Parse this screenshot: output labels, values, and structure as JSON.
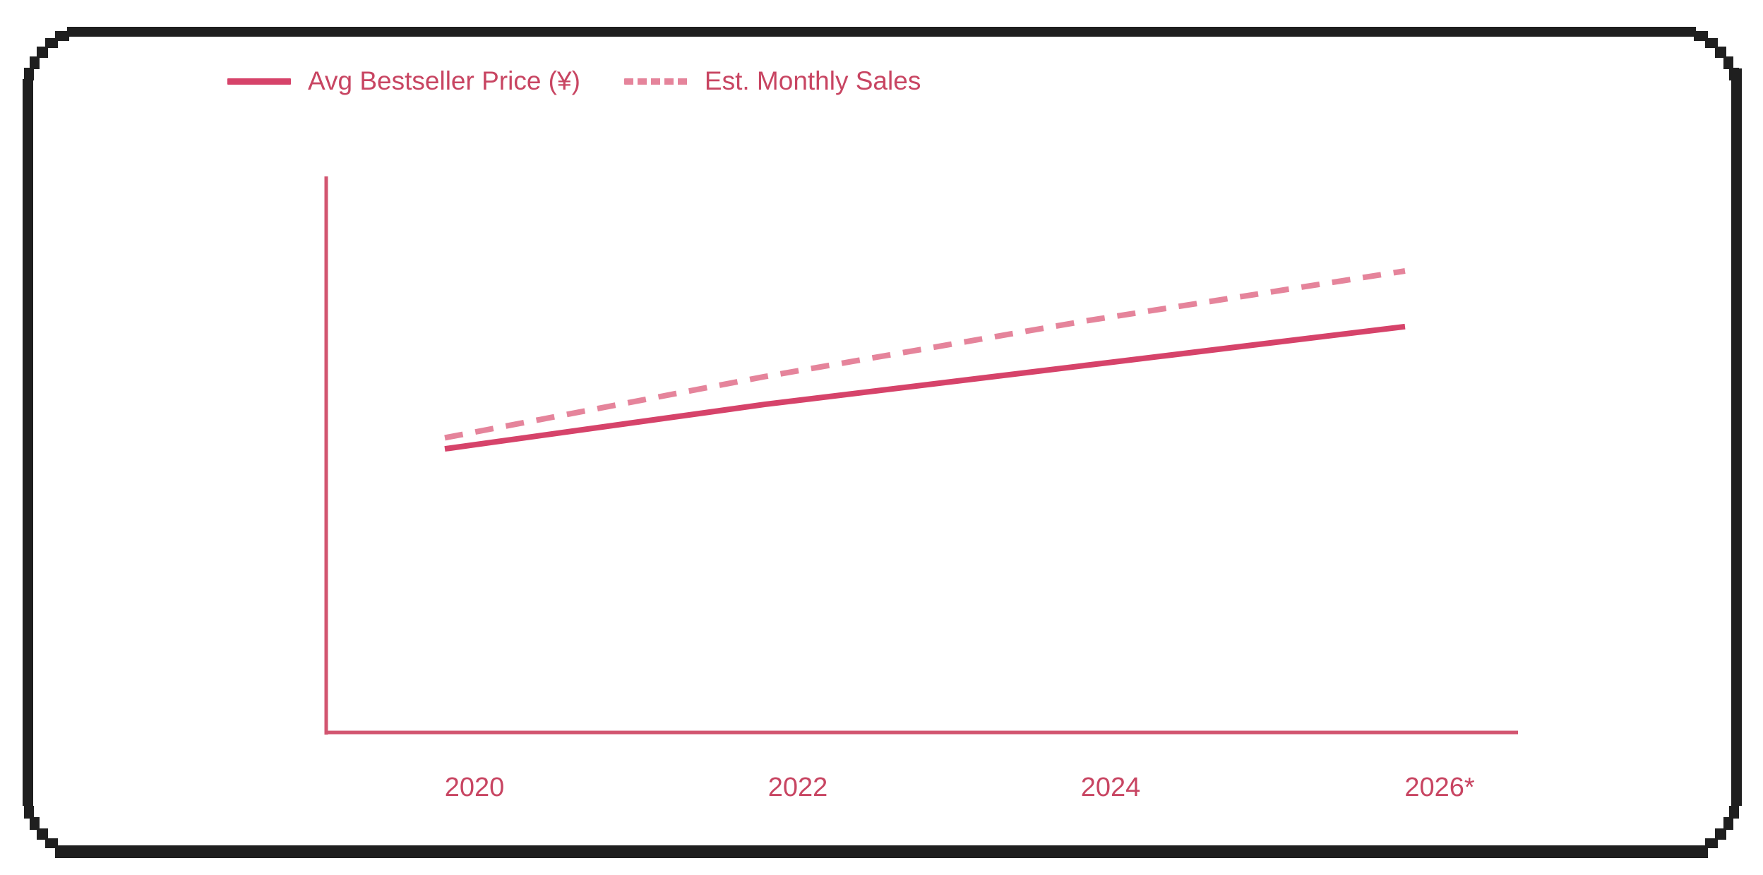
{
  "card": {
    "background": "#ffffff",
    "border_color": "#1f1f1f"
  },
  "legend": {
    "text_color": "#c84562",
    "items": [
      {
        "label": "Avg Bestseller Price (¥)",
        "style": "solid",
        "color": "#d6436a"
      },
      {
        "label": "Est. Monthly Sales",
        "style": "dashed",
        "color": "#e5849b"
      }
    ]
  },
  "chart_data": {
    "type": "line",
    "categories": [
      "2020",
      "2022",
      "2024",
      "2026*"
    ],
    "x": [
      2020,
      2022,
      2024,
      2026
    ],
    "series": [
      {
        "name": "Avg Bestseller Price (¥)",
        "style": "solid",
        "color": "#d6436a",
        "values": [
          51,
          59,
          66,
          73
        ]
      },
      {
        "name": "Est. Monthly Sales",
        "style": "dashed",
        "color": "#e5849b",
        "values": [
          53,
          64,
          74,
          83
        ]
      }
    ],
    "title": "",
    "xlabel": "",
    "ylabel": "",
    "ylim": [
      0,
      100
    ],
    "grid": false,
    "y_tick_labels": "none",
    "legend_position": "top-left",
    "axis_color": "#d25570",
    "tick_label_color": "#c84562",
    "note": "Y axis is unlabeled; series values are estimated as percent of plot height. 2026 is starred as a projection."
  }
}
